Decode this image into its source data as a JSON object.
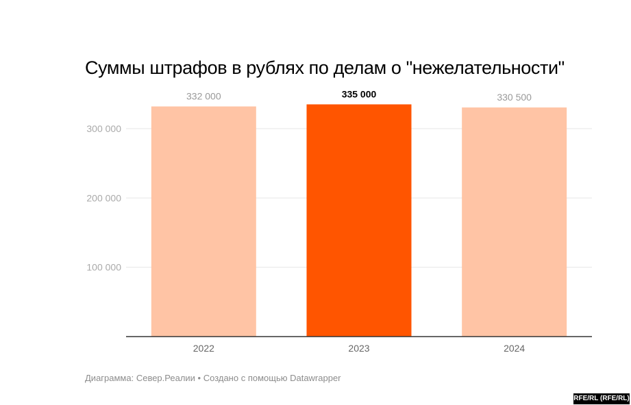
{
  "title": "Суммы штрафов в рублях по делам о \"нежелательности\"",
  "footer": {
    "source": "Диаграмма: Север.Реалии • Создано с помощью Datawrapper",
    "credit": "RFE/RL (RFE/RL)"
  },
  "colors": {
    "bar": "#ffc4a5",
    "bar_highlight": "#ff5500",
    "grid": "#e6e6e6",
    "baseline": "#333333",
    "tick_text": "#aaaaaa",
    "category_text": "#666666",
    "label_text": "#999999",
    "label_highlight_text": "#000000"
  },
  "chart_data": {
    "type": "bar",
    "title": "Суммы штрафов в рублях по делам о \"нежелательности\"",
    "categories": [
      "2022",
      "2023",
      "2024"
    ],
    "values": [
      332000,
      335000,
      330500
    ],
    "value_labels": [
      "332 000",
      "335 000",
      "330 500"
    ],
    "highlight": "2023",
    "ylim": [
      0,
      350000
    ],
    "yticks": [
      100000,
      200000,
      300000
    ],
    "ytick_labels": [
      "100 000",
      "200 000",
      "300 000"
    ],
    "grid": true,
    "xlabel": "",
    "ylabel": ""
  }
}
